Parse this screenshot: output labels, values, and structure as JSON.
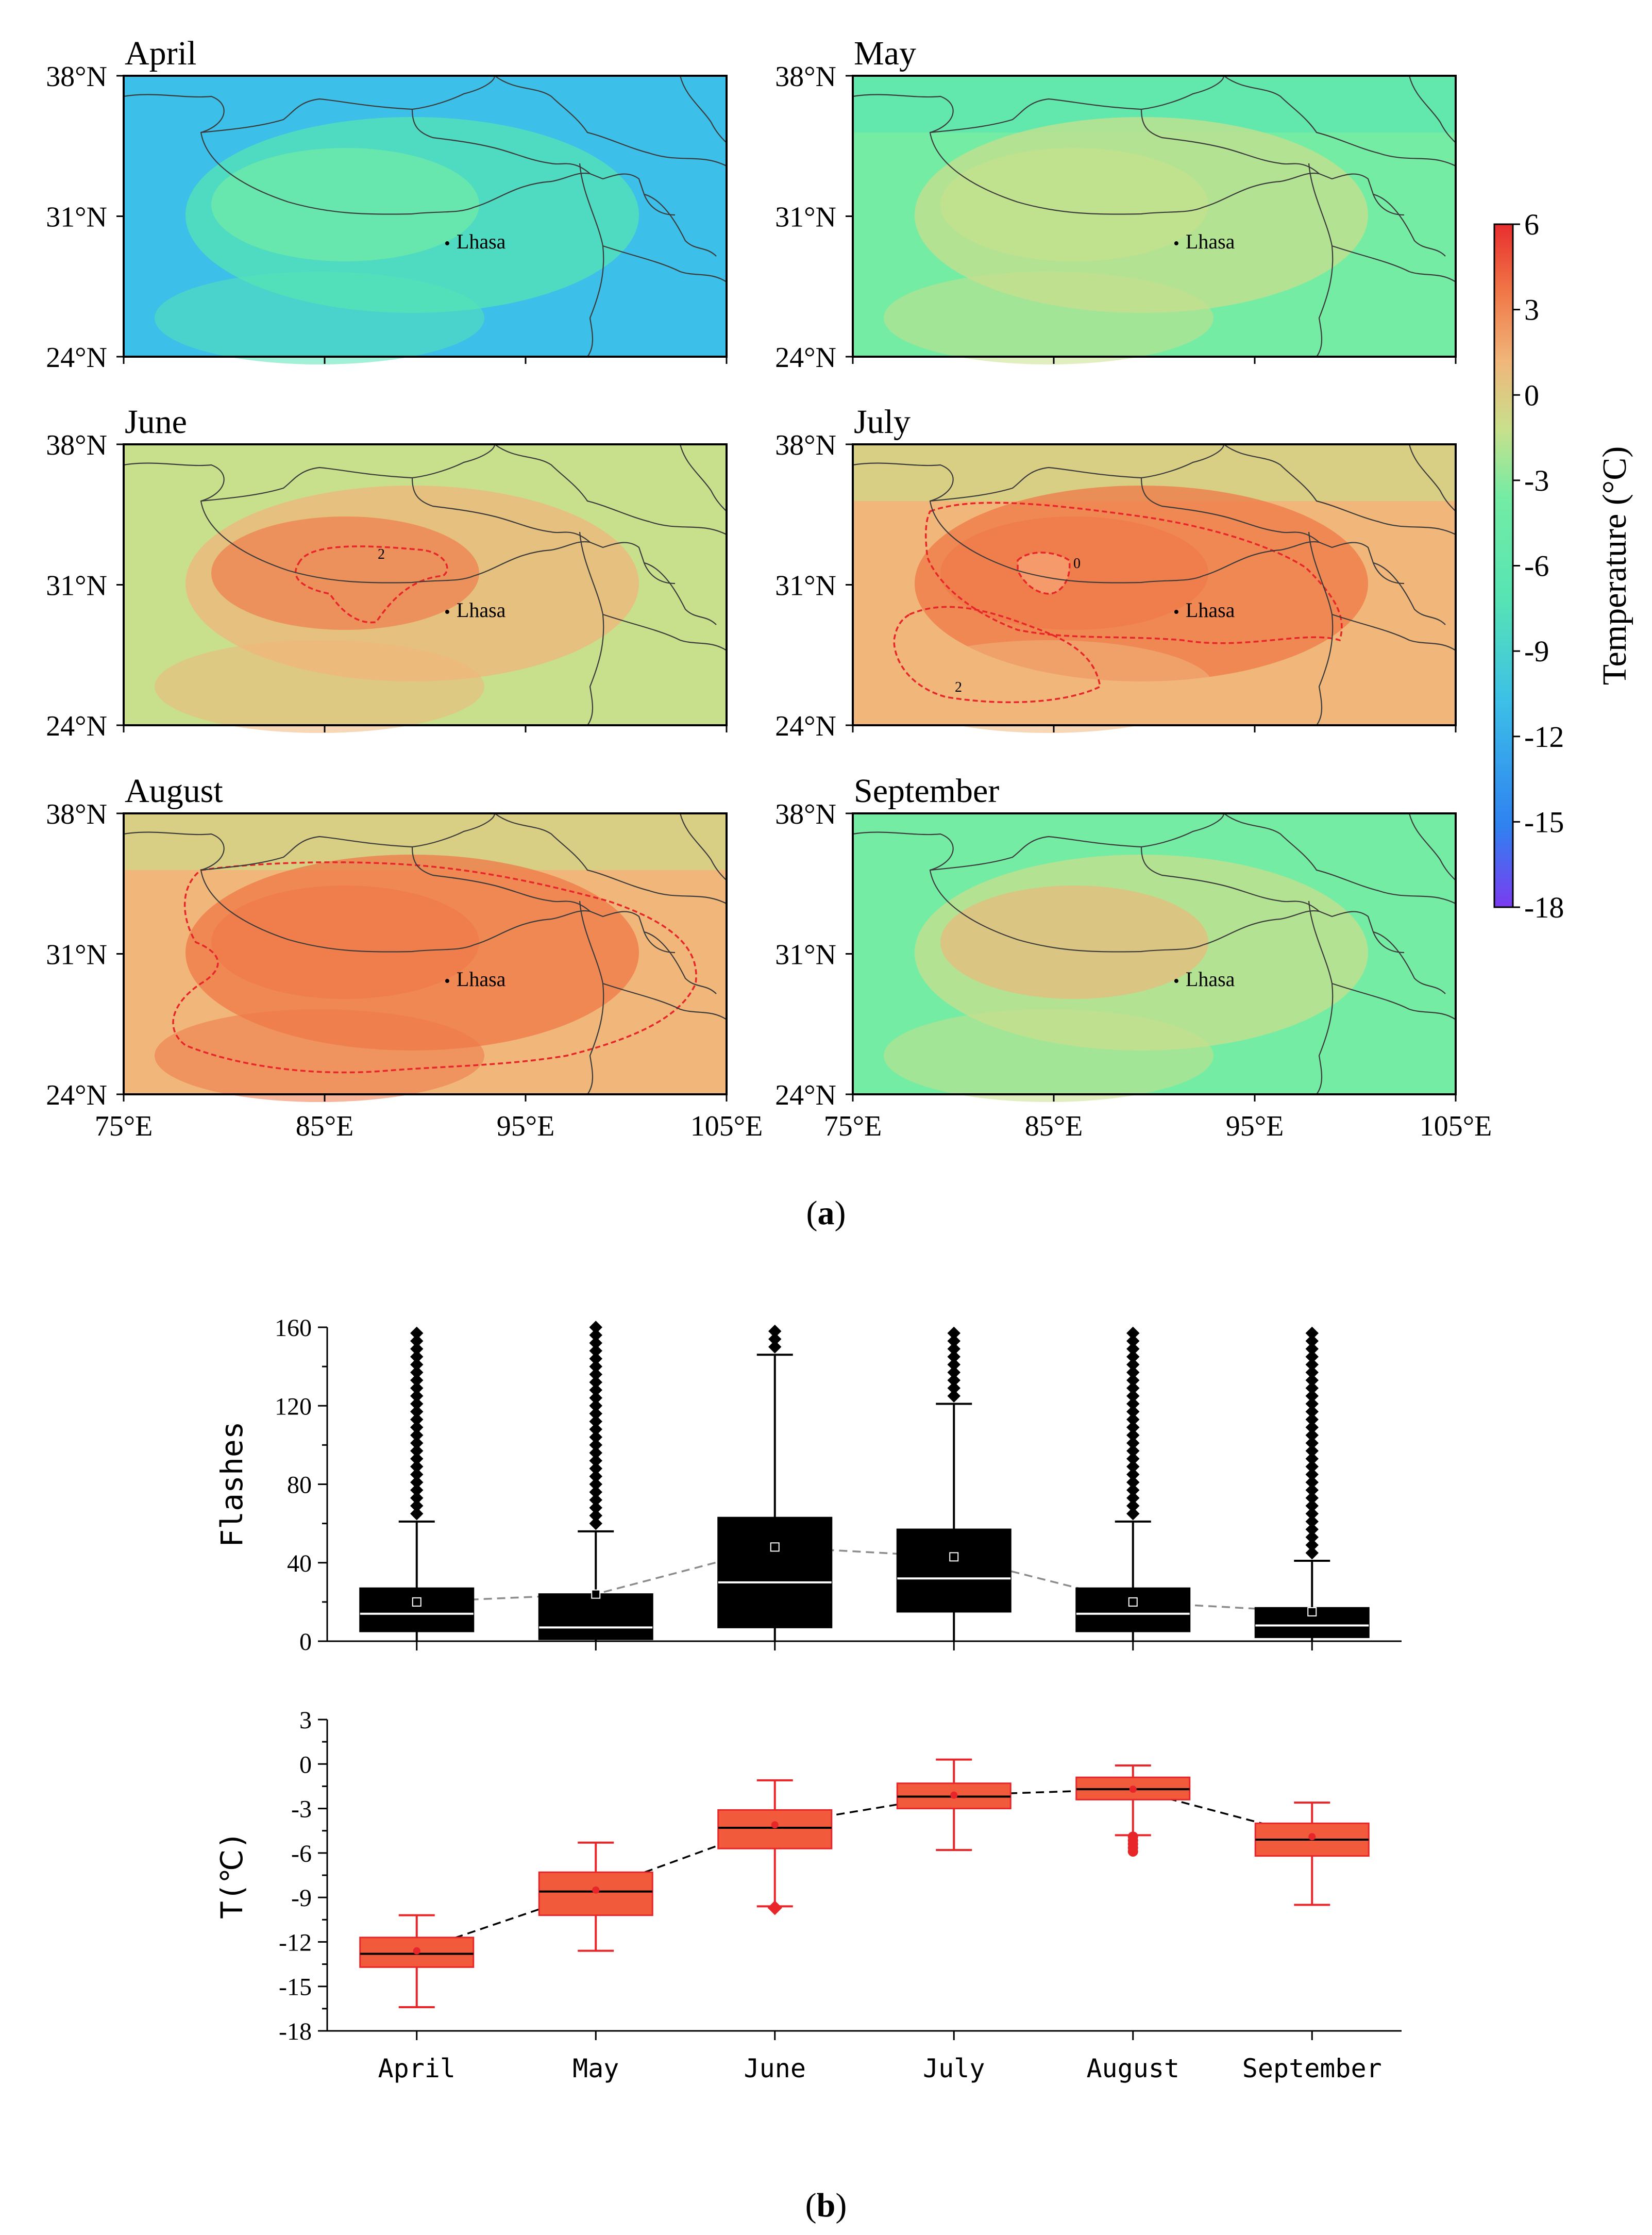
{
  "figure": {
    "panel_a_label": "a",
    "panel_b_label": "b"
  },
  "chart_data": [
    {
      "type": "heatmap",
      "subtype": "map-panels",
      "panels": [
        {
          "title": "April",
          "level": -10.5,
          "contours": []
        },
        {
          "title": "May",
          "level": -5.5,
          "contours": []
        },
        {
          "title": "June",
          "level": -1.5,
          "contours": [
            "2"
          ]
        },
        {
          "title": "July",
          "level": 0.0,
          "contours": [
            "2",
            "0"
          ]
        },
        {
          "title": "August",
          "level": 0.5,
          "contours": [
            "2"
          ]
        },
        {
          "title": "September",
          "level": -4.0,
          "contours": []
        }
      ],
      "x_ticks": [
        "75°E",
        "85°E",
        "95°E",
        "105°E"
      ],
      "y_ticks": [
        "38°N",
        "31°N",
        "24°N"
      ],
      "xlim": [
        75,
        105
      ],
      "ylim": [
        24,
        38
      ],
      "city": {
        "name": "Lhasa",
        "lon": 91.1,
        "lat": 29.65
      },
      "colorbar": {
        "label": "Temperature (°C)",
        "ticks": [
          "6",
          "3",
          "0",
          "-3",
          "-6",
          "-9",
          "-12",
          "-15",
          "-18"
        ],
        "range": [
          -18,
          6
        ],
        "colors": [
          "#7a3cf0",
          "#2f82f0",
          "#3cbfe8",
          "#56e4b4",
          "#74eca4",
          "#c8e08c",
          "#f0b67a",
          "#f07848",
          "#e82e2e"
        ]
      }
    },
    {
      "type": "box",
      "ylabel": "Flashes",
      "ylim": [
        0,
        160
      ],
      "yticks": [
        "160",
        "120",
        "80",
        "40",
        "0"
      ],
      "categories": [
        "April",
        "May",
        "June",
        "July",
        "August",
        "September"
      ],
      "q1": [
        5,
        1,
        7,
        15,
        5,
        2
      ],
      "median": [
        14,
        7,
        30,
        32,
        14,
        8
      ],
      "q3": [
        27,
        24,
        63,
        57,
        27,
        17
      ],
      "whisker_high": [
        61,
        56,
        146,
        121,
        61,
        41
      ],
      "mean": [
        20,
        24,
        48,
        43,
        20,
        15
      ],
      "box_color": "#000000",
      "median_color": "#ffffff",
      "mean_line_color": "#8c8c8c"
    },
    {
      "type": "box",
      "ylabel": "T(℃)",
      "ylim": [
        -18,
        3
      ],
      "yticks": [
        "3",
        "0",
        "-3",
        "-6",
        "-9",
        "-12",
        "-15",
        "-18"
      ],
      "categories": [
        "April",
        "May",
        "June",
        "July",
        "August",
        "September"
      ],
      "whisker_low": [
        -16.4,
        -12.6,
        -9.6,
        -5.8,
        -4.8,
        -9.5
      ],
      "q1": [
        -13.7,
        -10.2,
        -5.7,
        -3.0,
        -2.4,
        -6.2
      ],
      "median": [
        -12.8,
        -8.6,
        -4.3,
        -2.2,
        -1.7,
        -5.1
      ],
      "q3": [
        -11.7,
        -7.3,
        -3.1,
        -1.3,
        -0.9,
        -4.0
      ],
      "whisker_high": [
        -10.2,
        -5.3,
        -1.1,
        0.3,
        -0.1,
        -2.6
      ],
      "mean": [
        -12.6,
        -8.5,
        -4.1,
        -2.1,
        -1.7,
        -4.9
      ],
      "outliers_low": [
        null,
        null,
        -9.7,
        null,
        -5.9,
        null
      ],
      "box_color": "#f25a3c",
      "median_color": "#000000",
      "mean_line_color": "#000000"
    }
  ]
}
